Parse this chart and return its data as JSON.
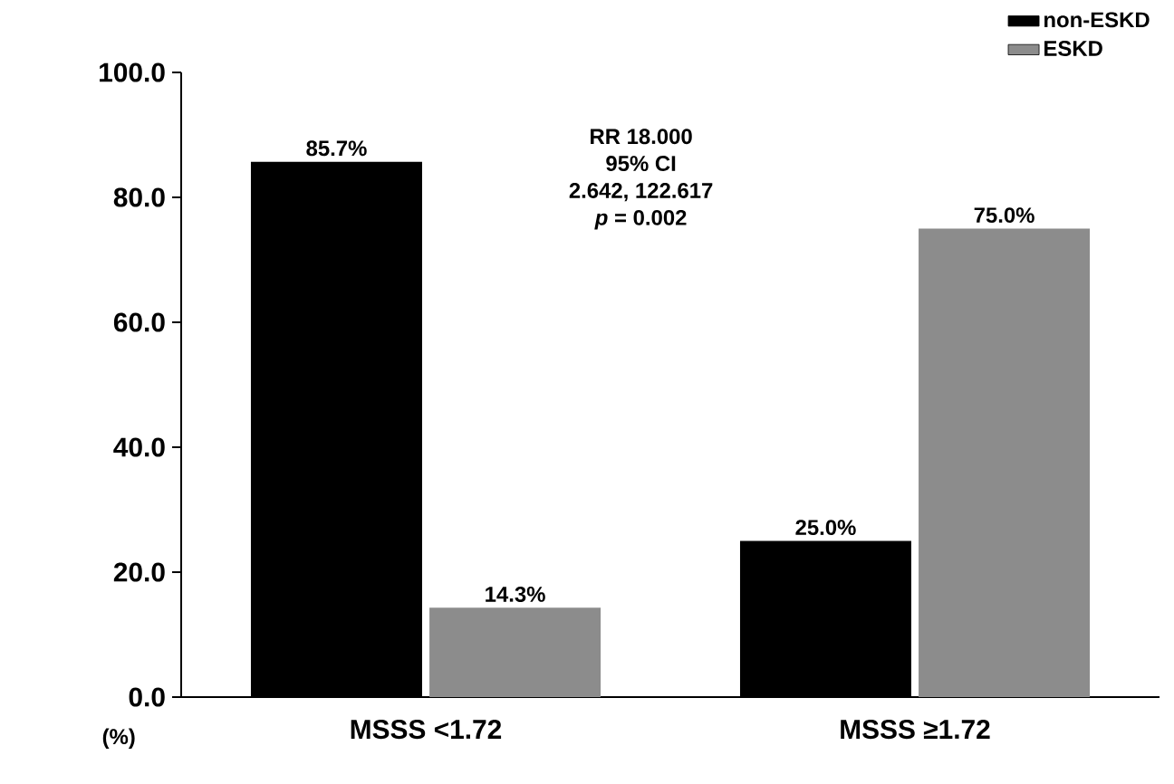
{
  "chart_data": {
    "type": "bar",
    "ylabel": "(%)",
    "categories": [
      "MSSS <1.72",
      "MSSS ≥1.72"
    ],
    "series": [
      {
        "name": "non-ESKD",
        "color": "#000000",
        "values": [
          85.7,
          25.0
        ],
        "value_labels": [
          "85.7%",
          "25.0%"
        ]
      },
      {
        "name": "ESKD",
        "color": "#8c8c8c",
        "values": [
          14.3,
          75.0
        ],
        "value_labels": [
          "14.3%",
          "75.0%"
        ]
      }
    ],
    "ylim": [
      0,
      100
    ],
    "yticks": [
      {
        "value": 0,
        "label": "0.0"
      },
      {
        "value": 20,
        "label": "20.0"
      },
      {
        "value": 40,
        "label": "40.0"
      },
      {
        "value": 60,
        "label": "60.0"
      },
      {
        "value": 80,
        "label": "80.0"
      },
      {
        "value": 100,
        "label": "100.0"
      }
    ],
    "annotations": [
      "RR 18.000",
      "95% CI",
      "2.642, 122.617",
      "*p* = 0.002"
    ],
    "legend": "top right",
    "grid": false
  }
}
